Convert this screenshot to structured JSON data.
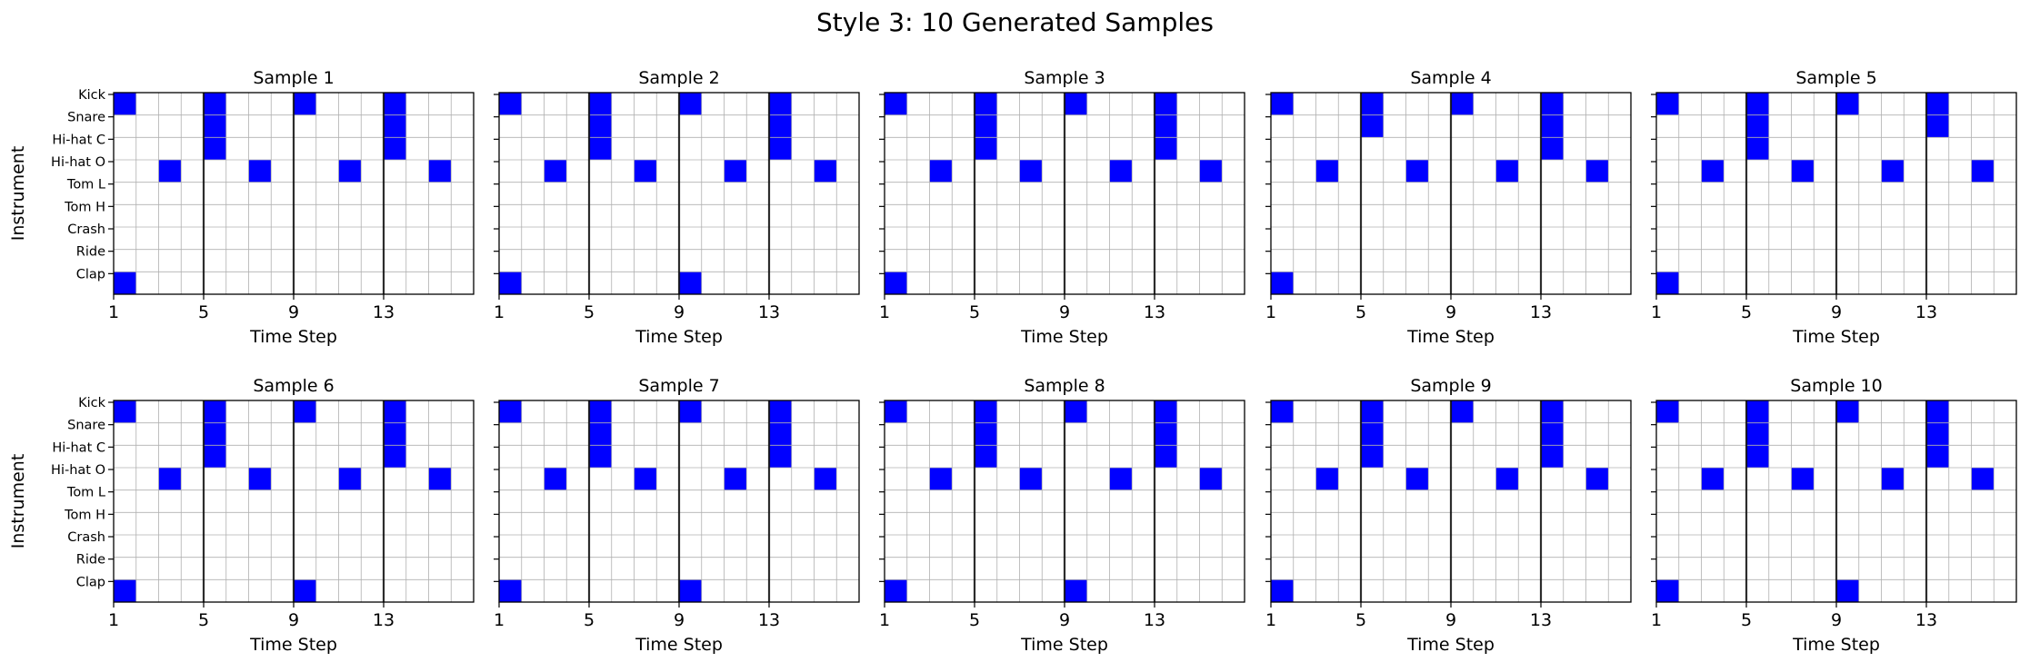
{
  "title": "Style 3: 10 Generated Samples",
  "colors": {
    "hit": "#0000ff",
    "grid": "#b0b0b0",
    "bar_line": "#000000",
    "background": "#ffffff"
  },
  "chart_data": [
    {
      "type": "heatmap",
      "title": "Sample 1",
      "xlabel": "Time Step",
      "ylabel": "Instrument",
      "instruments": [
        "Kick",
        "Snare",
        "Hi-hat C",
        "Hi-hat O",
        "Tom L",
        "Tom H",
        "Crash",
        "Ride",
        "Clap"
      ],
      "x_ticks": [
        1,
        5,
        9,
        13
      ],
      "steps": 16,
      "grid": true,
      "hits": [
        {
          "instrument": "Kick",
          "steps": [
            1,
            5,
            9,
            13
          ]
        },
        {
          "instrument": "Snare",
          "steps": [
            5,
            13
          ]
        },
        {
          "instrument": "Hi-hat C",
          "steps": [
            5,
            13
          ]
        },
        {
          "instrument": "Hi-hat O",
          "steps": [
            3,
            7,
            11,
            15
          ]
        },
        {
          "instrument": "Clap",
          "steps": [
            1
          ]
        }
      ]
    },
    {
      "type": "heatmap",
      "title": "Sample 2",
      "xlabel": "Time Step",
      "ylabel": "",
      "instruments": [
        "Kick",
        "Snare",
        "Hi-hat C",
        "Hi-hat O",
        "Tom L",
        "Tom H",
        "Crash",
        "Ride",
        "Clap"
      ],
      "x_ticks": [
        1,
        5,
        9,
        13
      ],
      "steps": 16,
      "grid": true,
      "hits": [
        {
          "instrument": "Kick",
          "steps": [
            1,
            5,
            9,
            13
          ]
        },
        {
          "instrument": "Snare",
          "steps": [
            5,
            13
          ]
        },
        {
          "instrument": "Hi-hat C",
          "steps": [
            5,
            13
          ]
        },
        {
          "instrument": "Hi-hat O",
          "steps": [
            3,
            7,
            11,
            15
          ]
        },
        {
          "instrument": "Clap",
          "steps": [
            1,
            9
          ]
        }
      ]
    },
    {
      "type": "heatmap",
      "title": "Sample 3",
      "xlabel": "Time Step",
      "ylabel": "",
      "instruments": [
        "Kick",
        "Snare",
        "Hi-hat C",
        "Hi-hat O",
        "Tom L",
        "Tom H",
        "Crash",
        "Ride",
        "Clap"
      ],
      "x_ticks": [
        1,
        5,
        9,
        13
      ],
      "steps": 16,
      "grid": true,
      "hits": [
        {
          "instrument": "Kick",
          "steps": [
            1,
            5,
            9,
            13
          ]
        },
        {
          "instrument": "Snare",
          "steps": [
            5,
            13
          ]
        },
        {
          "instrument": "Hi-hat C",
          "steps": [
            5,
            13
          ]
        },
        {
          "instrument": "Hi-hat O",
          "steps": [
            3,
            7,
            11,
            15
          ]
        },
        {
          "instrument": "Clap",
          "steps": [
            1
          ]
        }
      ]
    },
    {
      "type": "heatmap",
      "title": "Sample 4",
      "xlabel": "Time Step",
      "ylabel": "",
      "instruments": [
        "Kick",
        "Snare",
        "Hi-hat C",
        "Hi-hat O",
        "Tom L",
        "Tom H",
        "Crash",
        "Ride",
        "Clap"
      ],
      "x_ticks": [
        1,
        5,
        9,
        13
      ],
      "steps": 16,
      "grid": true,
      "hits": [
        {
          "instrument": "Kick",
          "steps": [
            1,
            5,
            9,
            13
          ]
        },
        {
          "instrument": "Snare",
          "steps": [
            5,
            13
          ]
        },
        {
          "instrument": "Hi-hat C",
          "steps": [
            13
          ]
        },
        {
          "instrument": "Hi-hat O",
          "steps": [
            3,
            7,
            11,
            15
          ]
        },
        {
          "instrument": "Clap",
          "steps": [
            1
          ]
        }
      ]
    },
    {
      "type": "heatmap",
      "title": "Sample 5",
      "xlabel": "Time Step",
      "ylabel": "",
      "instruments": [
        "Kick",
        "Snare",
        "Hi-hat C",
        "Hi-hat O",
        "Tom L",
        "Tom H",
        "Crash",
        "Ride",
        "Clap"
      ],
      "x_ticks": [
        1,
        5,
        9,
        13
      ],
      "steps": 16,
      "grid": true,
      "hits": [
        {
          "instrument": "Kick",
          "steps": [
            1,
            5,
            9,
            13
          ]
        },
        {
          "instrument": "Snare",
          "steps": [
            5,
            13
          ]
        },
        {
          "instrument": "Hi-hat C",
          "steps": [
            5
          ]
        },
        {
          "instrument": "Hi-hat O",
          "steps": [
            3,
            7,
            11,
            15
          ]
        },
        {
          "instrument": "Clap",
          "steps": [
            1
          ]
        }
      ]
    },
    {
      "type": "heatmap",
      "title": "Sample 6",
      "xlabel": "Time Step",
      "ylabel": "Instrument",
      "instruments": [
        "Kick",
        "Snare",
        "Hi-hat C",
        "Hi-hat O",
        "Tom L",
        "Tom H",
        "Crash",
        "Ride",
        "Clap"
      ],
      "x_ticks": [
        1,
        5,
        9,
        13
      ],
      "steps": 16,
      "grid": true,
      "hits": [
        {
          "instrument": "Kick",
          "steps": [
            1,
            5,
            9,
            13
          ]
        },
        {
          "instrument": "Snare",
          "steps": [
            5,
            13
          ]
        },
        {
          "instrument": "Hi-hat C",
          "steps": [
            5,
            13
          ]
        },
        {
          "instrument": "Hi-hat O",
          "steps": [
            3,
            7,
            11,
            15
          ]
        },
        {
          "instrument": "Clap",
          "steps": [
            1,
            9
          ]
        }
      ]
    },
    {
      "type": "heatmap",
      "title": "Sample 7",
      "xlabel": "Time Step",
      "ylabel": "",
      "instruments": [
        "Kick",
        "Snare",
        "Hi-hat C",
        "Hi-hat O",
        "Tom L",
        "Tom H",
        "Crash",
        "Ride",
        "Clap"
      ],
      "x_ticks": [
        1,
        5,
        9,
        13
      ],
      "steps": 16,
      "grid": true,
      "hits": [
        {
          "instrument": "Kick",
          "steps": [
            1,
            5,
            9,
            13
          ]
        },
        {
          "instrument": "Snare",
          "steps": [
            5,
            13
          ]
        },
        {
          "instrument": "Hi-hat C",
          "steps": [
            5,
            13
          ]
        },
        {
          "instrument": "Hi-hat O",
          "steps": [
            3,
            7,
            11,
            15
          ]
        },
        {
          "instrument": "Clap",
          "steps": [
            1,
            9
          ]
        }
      ]
    },
    {
      "type": "heatmap",
      "title": "Sample 8",
      "xlabel": "Time Step",
      "ylabel": "",
      "instruments": [
        "Kick",
        "Snare",
        "Hi-hat C",
        "Hi-hat O",
        "Tom L",
        "Tom H",
        "Crash",
        "Ride",
        "Clap"
      ],
      "x_ticks": [
        1,
        5,
        9,
        13
      ],
      "steps": 16,
      "grid": true,
      "hits": [
        {
          "instrument": "Kick",
          "steps": [
            1,
            5,
            9,
            13
          ]
        },
        {
          "instrument": "Snare",
          "steps": [
            5,
            13
          ]
        },
        {
          "instrument": "Hi-hat C",
          "steps": [
            5,
            13
          ]
        },
        {
          "instrument": "Hi-hat O",
          "steps": [
            3,
            7,
            11,
            15
          ]
        },
        {
          "instrument": "Clap",
          "steps": [
            1,
            9
          ]
        }
      ]
    },
    {
      "type": "heatmap",
      "title": "Sample 9",
      "xlabel": "Time Step",
      "ylabel": "",
      "instruments": [
        "Kick",
        "Snare",
        "Hi-hat C",
        "Hi-hat O",
        "Tom L",
        "Tom H",
        "Crash",
        "Ride",
        "Clap"
      ],
      "x_ticks": [
        1,
        5,
        9,
        13
      ],
      "steps": 16,
      "grid": true,
      "hits": [
        {
          "instrument": "Kick",
          "steps": [
            1,
            5,
            9,
            13
          ]
        },
        {
          "instrument": "Snare",
          "steps": [
            5,
            13
          ]
        },
        {
          "instrument": "Hi-hat C",
          "steps": [
            5,
            13
          ]
        },
        {
          "instrument": "Hi-hat O",
          "steps": [
            3,
            7,
            11,
            15
          ]
        },
        {
          "instrument": "Clap",
          "steps": [
            1
          ]
        }
      ]
    },
    {
      "type": "heatmap",
      "title": "Sample 10",
      "xlabel": "Time Step",
      "ylabel": "",
      "instruments": [
        "Kick",
        "Snare",
        "Hi-hat C",
        "Hi-hat O",
        "Tom L",
        "Tom H",
        "Crash",
        "Ride",
        "Clap"
      ],
      "x_ticks": [
        1,
        5,
        9,
        13
      ],
      "steps": 16,
      "grid": true,
      "hits": [
        {
          "instrument": "Kick",
          "steps": [
            1,
            5,
            9,
            13
          ]
        },
        {
          "instrument": "Snare",
          "steps": [
            5,
            13
          ]
        },
        {
          "instrument": "Hi-hat C",
          "steps": [
            5,
            13
          ]
        },
        {
          "instrument": "Hi-hat O",
          "steps": [
            3,
            7,
            11,
            15
          ]
        },
        {
          "instrument": "Clap",
          "steps": [
            1,
            9
          ]
        }
      ]
    }
  ]
}
